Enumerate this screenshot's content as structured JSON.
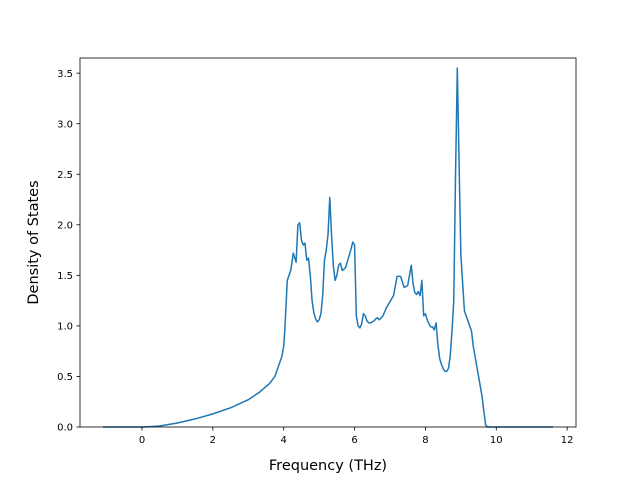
{
  "chart_data": {
    "type": "line",
    "title": "",
    "xlabel": "Frequency (THz)",
    "ylabel": "Density of States",
    "xlim": [
      -1.75,
      12.25
    ],
    "ylim": [
      0,
      3.65
    ],
    "xticks": [
      0,
      2,
      4,
      6,
      8,
      10,
      12
    ],
    "xtick_labels": [
      "0",
      "2",
      "4",
      "6",
      "8",
      "10",
      "12"
    ],
    "yticks": [
      0.0,
      0.5,
      1.0,
      1.5,
      2.0,
      2.5,
      3.0,
      3.5
    ],
    "ytick_labels": [
      "0.0",
      "0.5",
      "1.0",
      "1.5",
      "2.0",
      "2.5",
      "3.0",
      "3.5"
    ],
    "grid": false,
    "colors": {
      "line": "#1f77b4",
      "axes": "#000000",
      "background": "#ffffff"
    },
    "series": [
      {
        "x": [
          -1.1,
          0.0,
          0.3,
          0.5,
          1.0,
          1.5,
          2.0,
          2.5,
          3.0,
          3.3,
          3.6,
          3.75,
          3.85,
          3.95,
          4.0,
          4.03,
          4.1,
          4.15,
          4.2,
          4.27,
          4.35,
          4.4,
          4.45,
          4.5,
          4.55,
          4.6,
          4.65,
          4.7,
          4.75,
          4.8,
          4.85,
          4.9,
          4.95,
          5.0,
          5.05,
          5.1,
          5.15,
          5.2,
          5.25,
          5.3,
          5.35,
          5.4,
          5.45,
          5.5,
          5.55,
          5.6,
          5.65,
          5.7,
          5.75,
          5.8,
          5.85,
          5.9,
          5.95,
          6.0,
          6.05,
          6.1,
          6.15,
          6.2,
          6.25,
          6.3,
          6.35,
          6.4,
          6.45,
          6.5,
          6.55,
          6.6,
          6.65,
          6.7,
          6.8,
          6.9,
          7.0,
          7.1,
          7.2,
          7.3,
          7.4,
          7.5,
          7.6,
          7.65,
          7.7,
          7.75,
          7.8,
          7.85,
          7.9,
          7.95,
          8.0,
          8.05,
          8.1,
          8.15,
          8.2,
          8.25,
          8.3,
          8.35,
          8.4,
          8.45,
          8.5,
          8.55,
          8.6,
          8.65,
          8.7,
          8.75,
          8.8,
          8.85,
          8.9,
          8.95,
          9.0,
          9.1,
          9.2,
          9.3,
          9.35,
          9.4,
          9.45,
          9.5,
          9.55,
          9.6,
          9.65,
          9.7,
          9.75,
          9.8,
          9.85,
          9.9,
          10.0,
          10.1,
          10.2,
          10.3,
          10.35,
          10.4,
          10.45,
          10.5,
          10.6,
          10.8,
          11.0,
          11.2,
          11.4,
          11.6
        ],
        "y": [
          0,
          0,
          0.005,
          0.01,
          0.04,
          0.08,
          0.13,
          0.19,
          0.27,
          0.34,
          0.43,
          0.5,
          0.6,
          0.7,
          0.8,
          0.95,
          1.45,
          1.5,
          1.55,
          1.72,
          1.63,
          2.0,
          2.02,
          1.85,
          1.8,
          1.82,
          1.65,
          1.67,
          1.5,
          1.25,
          1.13,
          1.07,
          1.04,
          1.06,
          1.12,
          1.3,
          1.65,
          1.75,
          1.9,
          2.27,
          1.9,
          1.6,
          1.45,
          1.5,
          1.6,
          1.62,
          1.55,
          1.56,
          1.58,
          1.64,
          1.7,
          1.76,
          1.83,
          1.8,
          1.1,
          1.0,
          0.98,
          1.02,
          1.12,
          1.1,
          1.05,
          1.03,
          1.03,
          1.04,
          1.05,
          1.07,
          1.08,
          1.06,
          1.1,
          1.18,
          1.24,
          1.3,
          1.49,
          1.49,
          1.38,
          1.4,
          1.6,
          1.42,
          1.33,
          1.31,
          1.34,
          1.3,
          1.45,
          1.1,
          1.12,
          1.06,
          1.02,
          0.99,
          0.99,
          0.96,
          1.03,
          0.82,
          0.68,
          0.62,
          0.58,
          0.55,
          0.55,
          0.58,
          0.7,
          0.95,
          1.25,
          2.5,
          3.55,
          2.6,
          1.7,
          1.15,
          1.05,
          0.95,
          0.8,
          0.7,
          0.6,
          0.5,
          0.4,
          0.3,
          0.15,
          0.02,
          0,
          0,
          0,
          0,
          0,
          0,
          0,
          0,
          0,
          0,
          0,
          0,
          0,
          0,
          0,
          0,
          0,
          0
        ]
      }
    ]
  }
}
